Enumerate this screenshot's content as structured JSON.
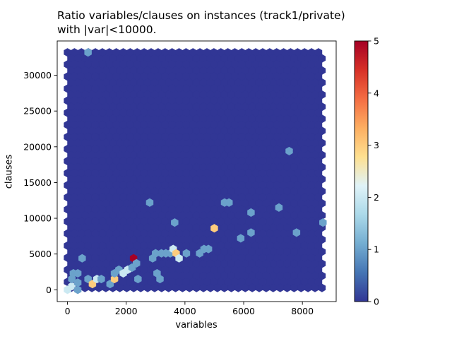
{
  "chart_data": {
    "type": "heatmap",
    "subtype": "hexbin",
    "title_lines": [
      "Ratio variables/clauses on instances (track1/private)",
      "with |var|<10000."
    ],
    "xlabel": "variables",
    "ylabel": "clauses",
    "xlim": [
      -350,
      9150
    ],
    "ylim": [
      -1650,
      34800
    ],
    "xticks": [
      0,
      2000,
      4000,
      6000,
      8000
    ],
    "yticks": [
      0,
      5000,
      10000,
      15000,
      20000,
      25000,
      30000
    ],
    "colorbar": {
      "colormap": "RdYlBu_r",
      "min": 0,
      "max": 5,
      "ticks": [
        0,
        1,
        2,
        3,
        4,
        5
      ]
    },
    "background_count": 0,
    "bins": [
      {
        "x": 700,
        "y": 33200,
        "count": 1
      },
      {
        "x": 0,
        "y": 0,
        "count": 2
      },
      {
        "x": 150,
        "y": 500,
        "count": 2
      },
      {
        "x": 350,
        "y": 0,
        "count": 1
      },
      {
        "x": 150,
        "y": 1500,
        "count": 1
      },
      {
        "x": 200,
        "y": 2300,
        "count": 1
      },
      {
        "x": 350,
        "y": 2300,
        "count": 1
      },
      {
        "x": 350,
        "y": 1000,
        "count": 1
      },
      {
        "x": 500,
        "y": 4400,
        "count": 1
      },
      {
        "x": 700,
        "y": 1500,
        "count": 1
      },
      {
        "x": 850,
        "y": 800,
        "count": 3
      },
      {
        "x": 1000,
        "y": 1500,
        "count": 2
      },
      {
        "x": 1150,
        "y": 1500,
        "count": 1
      },
      {
        "x": 1450,
        "y": 800,
        "count": 1
      },
      {
        "x": 1600,
        "y": 1500,
        "count": 3
      },
      {
        "x": 1600,
        "y": 2300,
        "count": 1
      },
      {
        "x": 1750,
        "y": 2800,
        "count": 1
      },
      {
        "x": 1900,
        "y": 2300,
        "count": 2
      },
      {
        "x": 2050,
        "y": 2800,
        "count": 2
      },
      {
        "x": 2200,
        "y": 3100,
        "count": 1
      },
      {
        "x": 2250,
        "y": 4400,
        "count": 5
      },
      {
        "x": 2350,
        "y": 3700,
        "count": 1
      },
      {
        "x": 2400,
        "y": 1500,
        "count": 1
      },
      {
        "x": 2800,
        "y": 12200,
        "count": 1
      },
      {
        "x": 2900,
        "y": 4400,
        "count": 1
      },
      {
        "x": 3000,
        "y": 5100,
        "count": 1
      },
      {
        "x": 3050,
        "y": 2300,
        "count": 1
      },
      {
        "x": 3150,
        "y": 1500,
        "count": 1
      },
      {
        "x": 3200,
        "y": 5100,
        "count": 1
      },
      {
        "x": 3350,
        "y": 5100,
        "count": 1
      },
      {
        "x": 3500,
        "y": 5100,
        "count": 1
      },
      {
        "x": 3600,
        "y": 5700,
        "count": 2
      },
      {
        "x": 3650,
        "y": 9400,
        "count": 1
      },
      {
        "x": 3700,
        "y": 5100,
        "count": 3
      },
      {
        "x": 3800,
        "y": 4400,
        "count": 2
      },
      {
        "x": 4050,
        "y": 5100,
        "count": 1
      },
      {
        "x": 4500,
        "y": 5100,
        "count": 1
      },
      {
        "x": 4650,
        "y": 5700,
        "count": 1
      },
      {
        "x": 4800,
        "y": 5700,
        "count": 1
      },
      {
        "x": 5000,
        "y": 8600,
        "count": 3
      },
      {
        "x": 5350,
        "y": 12200,
        "count": 1
      },
      {
        "x": 5500,
        "y": 12200,
        "count": 1
      },
      {
        "x": 5900,
        "y": 7200,
        "count": 1
      },
      {
        "x": 6250,
        "y": 10800,
        "count": 1
      },
      {
        "x": 6250,
        "y": 8000,
        "count": 1
      },
      {
        "x": 7200,
        "y": 11500,
        "count": 1
      },
      {
        "x": 7550,
        "y": 19400,
        "count": 1
      },
      {
        "x": 7800,
        "y": 8000,
        "count": 1
      },
      {
        "x": 8700,
        "y": 9400,
        "count": 1
      }
    ]
  }
}
